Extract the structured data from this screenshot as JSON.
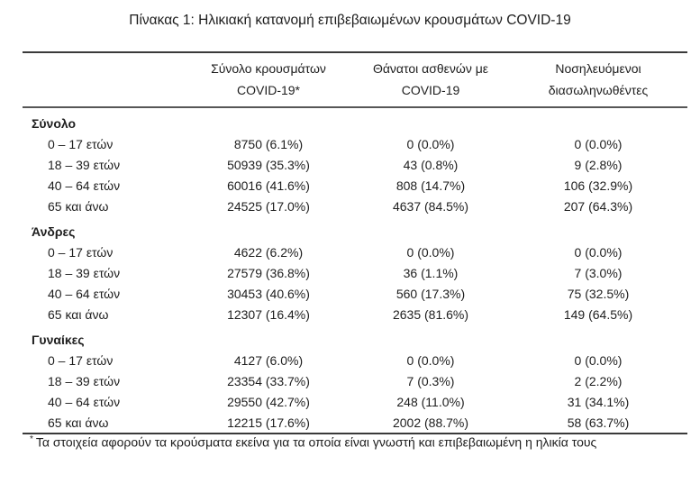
{
  "title": "Πίνακας 1: Ηλικιακή κατανομή επιβεβαιωμένων κρουσμάτων COVID-19",
  "colors": {
    "text": "#1e1e1e",
    "border": "#3a3a3a",
    "background": "#ffffff"
  },
  "table": {
    "columns": [
      {
        "line1": "Σύνολο κρουσμάτων",
        "line2": "COVID-19*"
      },
      {
        "line1": "Θάνατοι ασθενών με",
        "line2": "COVID-19"
      },
      {
        "line1": "Νοσηλευόμενοι",
        "line2": "διασωληνωθέντες"
      }
    ],
    "sections": [
      {
        "label": "Σύνολο",
        "rows": [
          {
            "label": "0 – 17 ετών",
            "cases": "8750 (6.1%)",
            "deaths": "0 (0.0%)",
            "icu": "0 (0.0%)"
          },
          {
            "label": "18 – 39 ετών",
            "cases": "50939 (35.3%)",
            "deaths": "43 (0.8%)",
            "icu": "9 (2.8%)"
          },
          {
            "label": "40 – 64 ετών",
            "cases": "60016 (41.6%)",
            "deaths": "808 (14.7%)",
            "icu": "106 (32.9%)"
          },
          {
            "label": "65 και άνω",
            "cases": "24525 (17.0%)",
            "deaths": "4637 (84.5%)",
            "icu": "207 (64.3%)"
          }
        ]
      },
      {
        "label": "Άνδρες",
        "rows": [
          {
            "label": "0 – 17 ετών",
            "cases": "4622 (6.2%)",
            "deaths": "0 (0.0%)",
            "icu": "0 (0.0%)"
          },
          {
            "label": "18 – 39 ετών",
            "cases": "27579 (36.8%)",
            "deaths": "36 (1.1%)",
            "icu": "7 (3.0%)"
          },
          {
            "label": "40 – 64 ετών",
            "cases": "30453 (40.6%)",
            "deaths": "560 (17.3%)",
            "icu": "75 (32.5%)"
          },
          {
            "label": "65 και άνω",
            "cases": "12307 (16.4%)",
            "deaths": "2635 (81.6%)",
            "icu": "149 (64.5%)"
          }
        ]
      },
      {
        "label": "Γυναίκες",
        "rows": [
          {
            "label": "0 – 17 ετών",
            "cases": "4127 (6.0%)",
            "deaths": "0 (0.0%)",
            "icu": "0 (0.0%)"
          },
          {
            "label": "18 – 39 ετών",
            "cases": "23354 (33.7%)",
            "deaths": "7 (0.3%)",
            "icu": "2 (2.2%)"
          },
          {
            "label": "40 – 64 ετών",
            "cases": "29550 (42.7%)",
            "deaths": "248 (11.0%)",
            "icu": "31 (34.1%)"
          },
          {
            "label": "65 και άνω",
            "cases": "12215 (17.6%)",
            "deaths": "2002 (88.7%)",
            "icu": "58 (63.7%)"
          }
        ]
      }
    ]
  },
  "footnote": {
    "marker": "*",
    "text": "Τα στοιχεία αφορούν τα κρούσματα εκείνα για τα οποία είναι γνωστή και επιβεβαιωμένη η ηλικία τους"
  }
}
